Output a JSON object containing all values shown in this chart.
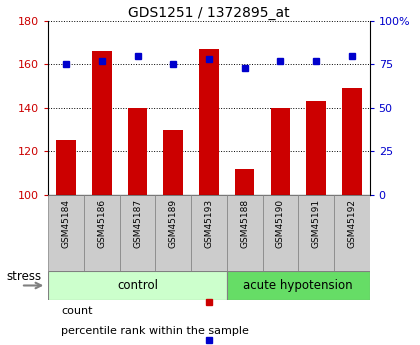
{
  "title": "GDS1251 / 1372895_at",
  "samples": [
    "GSM45184",
    "GSM45186",
    "GSM45187",
    "GSM45189",
    "GSM45193",
    "GSM45188",
    "GSM45190",
    "GSM45191",
    "GSM45192"
  ],
  "counts": [
    125,
    166,
    140,
    130,
    167,
    112,
    140,
    143,
    149
  ],
  "percentiles": [
    75,
    77,
    80,
    75,
    78,
    73,
    77,
    77,
    80
  ],
  "ylim_left": [
    100,
    180
  ],
  "ylim_right": [
    0,
    100
  ],
  "yticks_left": [
    100,
    120,
    140,
    160,
    180
  ],
  "yticks_right": [
    0,
    25,
    50,
    75,
    100
  ],
  "ytick_labels_right": [
    "0",
    "25",
    "50",
    "75",
    "100%"
  ],
  "bar_color": "#cc0000",
  "dot_color": "#0000cc",
  "n_control": 5,
  "n_acute": 4,
  "control_label": "control",
  "acute_label": "acute hypotension",
  "stress_label": "stress",
  "legend_count": "count",
  "legend_percentile": "percentile rank within the sample",
  "control_color_light": "#ccffcc",
  "control_color_dark": "#66dd66",
  "tick_color_left": "#cc0000",
  "tick_color_right": "#0000cc",
  "sample_box_color": "#cccccc",
  "figsize": [
    4.2,
    3.45
  ],
  "dpi": 100
}
